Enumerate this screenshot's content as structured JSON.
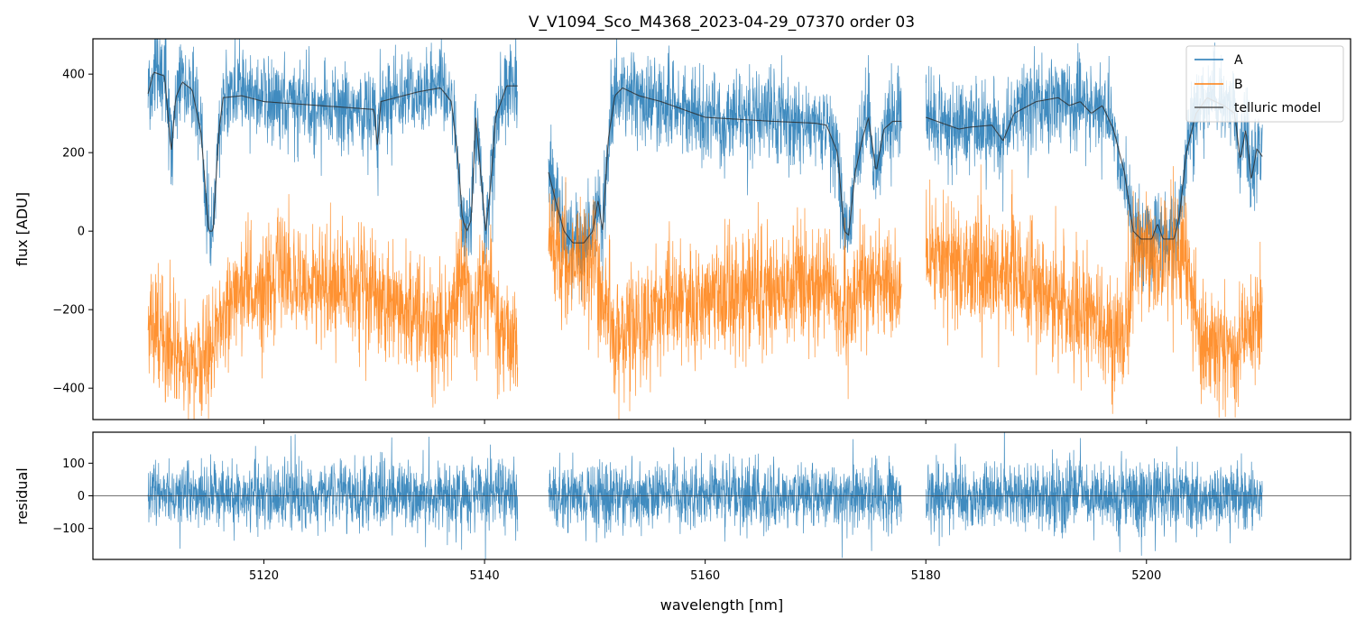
{
  "chart_data": [
    {
      "type": "line",
      "title": "V_V1094_Sco_M4368_2023-04-29_07370  order 03",
      "xlabel": "",
      "ylabel": "flux [ADU]",
      "xlim": [
        5104.5,
        5218.5
      ],
      "ylim": [
        -480,
        490
      ],
      "yticks": [
        400,
        200,
        0,
        -200,
        -400
      ],
      "ytick_labels": [
        "400",
        "200",
        "0",
        "−200",
        "−400"
      ],
      "xticks": [
        5120,
        5140,
        5160,
        5180,
        5200
      ],
      "segments": [
        [
          5109.5,
          5143.0
        ],
        [
          5145.8,
          5177.8
        ],
        [
          5180.0,
          5210.5
        ]
      ],
      "legend_position": "top-right",
      "series": [
        {
          "name": "A",
          "color": "#1f77b4"
        },
        {
          "name": "B",
          "color": "#ff7f0e"
        },
        {
          "name": "telluric model",
          "color": "#333333"
        }
      ],
      "model_points": [
        [
          5109.5,
          350
        ],
        [
          5110.0,
          405
        ],
        [
          5111.0,
          395
        ],
        [
          5111.6,
          200
        ],
        [
          5112.0,
          340
        ],
        [
          5112.6,
          380
        ],
        [
          5113.5,
          360
        ],
        [
          5114.3,
          250
        ],
        [
          5115.0,
          0
        ],
        [
          5115.4,
          0
        ],
        [
          5115.9,
          250
        ],
        [
          5116.3,
          340
        ],
        [
          5118.0,
          345
        ],
        [
          5120.0,
          330
        ],
        [
          5125.0,
          320
        ],
        [
          5130.0,
          310
        ],
        [
          5130.3,
          210
        ],
        [
          5130.6,
          330
        ],
        [
          5134.0,
          355
        ],
        [
          5136.0,
          365
        ],
        [
          5137.0,
          330
        ],
        [
          5137.6,
          180
        ],
        [
          5138.0,
          30
        ],
        [
          5138.4,
          0
        ],
        [
          5138.8,
          30
        ],
        [
          5139.2,
          290
        ],
        [
          5139.8,
          100
        ],
        [
          5140.1,
          0
        ],
        [
          5140.5,
          100
        ],
        [
          5141.0,
          290
        ],
        [
          5141.5,
          330
        ],
        [
          5142.0,
          370
        ],
        [
          5143.0,
          370
        ],
        [
          5145.8,
          150
        ],
        [
          5146.6,
          60
        ],
        [
          5147.2,
          0
        ],
        [
          5148.0,
          -30
        ],
        [
          5149.0,
          -30
        ],
        [
          5149.8,
          0
        ],
        [
          5150.3,
          80
        ],
        [
          5150.7,
          0
        ],
        [
          5151.2,
          230
        ],
        [
          5151.8,
          345
        ],
        [
          5152.5,
          365
        ],
        [
          5154.0,
          345
        ],
        [
          5156.0,
          330
        ],
        [
          5158.0,
          310
        ],
        [
          5160.0,
          290
        ],
        [
          5163.0,
          285
        ],
        [
          5166.0,
          280
        ],
        [
          5170.0,
          275
        ],
        [
          5171.0,
          270
        ],
        [
          5172.0,
          200
        ],
        [
          5172.6,
          0
        ],
        [
          5173.0,
          -10
        ],
        [
          5173.6,
          150
        ],
        [
          5174.2,
          230
        ],
        [
          5174.8,
          290
        ],
        [
          5175.5,
          150
        ],
        [
          5176.2,
          260
        ],
        [
          5177.0,
          280
        ],
        [
          5177.8,
          280
        ],
        [
          5180.0,
          290
        ],
        [
          5183.0,
          260
        ],
        [
          5184.0,
          265
        ],
        [
          5186.0,
          270
        ],
        [
          5187.0,
          230
        ],
        [
          5188.0,
          300
        ],
        [
          5190.0,
          330
        ],
        [
          5192.0,
          340
        ],
        [
          5193.0,
          320
        ],
        [
          5194.0,
          330
        ],
        [
          5195.0,
          300
        ],
        [
          5196.0,
          320
        ],
        [
          5197.0,
          260
        ],
        [
          5198.0,
          150
        ],
        [
          5198.8,
          0
        ],
        [
          5199.5,
          -20
        ],
        [
          5200.5,
          -20
        ],
        [
          5201.0,
          20
        ],
        [
          5201.5,
          -20
        ],
        [
          5202.5,
          -20
        ],
        [
          5203.0,
          40
        ],
        [
          5203.6,
          200
        ],
        [
          5204.5,
          300
        ],
        [
          5205.5,
          340
        ],
        [
          5207.0,
          320
        ],
        [
          5208.0,
          300
        ],
        [
          5208.5,
          180
        ],
        [
          5209.0,
          260
        ],
        [
          5209.5,
          130
        ],
        [
          5210.0,
          210
        ],
        [
          5210.5,
          190
        ]
      ],
      "b_trend_points": [
        [
          5109.5,
          -230
        ],
        [
          5112.0,
          -300
        ],
        [
          5114.5,
          -330
        ],
        [
          5116.0,
          -230
        ],
        [
          5118.0,
          -150
        ],
        [
          5122.0,
          -120
        ],
        [
          5126.0,
          -130
        ],
        [
          5130.0,
          -160
        ],
        [
          5134.0,
          -210
        ],
        [
          5136.5,
          -250
        ],
        [
          5138.0,
          -100
        ],
        [
          5139.0,
          -230
        ],
        [
          5140.0,
          -80
        ],
        [
          5141.0,
          -240
        ],
        [
          5143.0,
          -270
        ],
        [
          5145.8,
          -40
        ],
        [
          5148.0,
          -80
        ],
        [
          5150.0,
          -40
        ],
        [
          5151.5,
          -280
        ],
        [
          5153.0,
          -250
        ],
        [
          5156.0,
          -200
        ],
        [
          5160.0,
          -170
        ],
        [
          5164.0,
          -150
        ],
        [
          5168.0,
          -140
        ],
        [
          5171.0,
          -130
        ],
        [
          5172.5,
          -220
        ],
        [
          5174.0,
          -130
        ],
        [
          5176.0,
          -140
        ],
        [
          5177.8,
          -150
        ],
        [
          5180.0,
          -50
        ],
        [
          5184.0,
          -90
        ],
        [
          5188.0,
          -130
        ],
        [
          5192.0,
          -180
        ],
        [
          5196.0,
          -260
        ],
        [
          5198.0,
          -270
        ],
        [
          5199.0,
          -40
        ],
        [
          5202.0,
          -70
        ],
        [
          5203.5,
          -50
        ],
        [
          5205.0,
          -280
        ],
        [
          5208.0,
          -300
        ],
        [
          5210.5,
          -200
        ]
      ]
    },
    {
      "type": "line",
      "title": "",
      "xlabel": "wavelength [nm]",
      "ylabel": "residual",
      "xlim": [
        5104.5,
        5218.5
      ],
      "ylim": [
        -195,
        195
      ],
      "yticks": [
        100,
        0,
        -100
      ],
      "ytick_labels": [
        "100",
        "0",
        "−100"
      ],
      "xticks": [
        5120,
        5140,
        5160,
        5180,
        5200
      ],
      "xtick_labels": [
        "5120",
        "5140",
        "5160",
        "5180",
        "5200"
      ],
      "series": [
        {
          "name": "residual",
          "color": "#1f77b4"
        }
      ],
      "reference_line": 0
    }
  ]
}
